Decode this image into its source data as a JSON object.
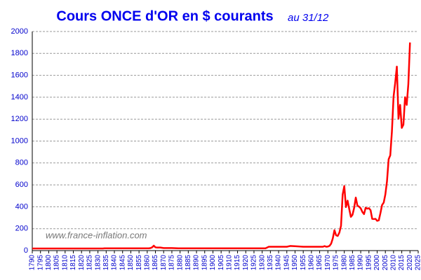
{
  "chart_data": {
    "type": "line",
    "title": "Cours ONCE d'OR en $ courants",
    "subtitle": "au 31/12",
    "annotation": "www.france-inflation.com",
    "color": "#ff0000",
    "x": [
      1790,
      1833,
      1834,
      1861,
      1862,
      1863,
      1864,
      1865,
      1866,
      1868,
      1870,
      1875,
      1879,
      1932,
      1934,
      1945,
      1947,
      1950,
      1955,
      1967,
      1968,
      1969,
      1970,
      1971,
      1972,
      1973,
      1974,
      1975,
      1976,
      1977,
      1978,
      1979,
      1980,
      1981,
      1982,
      1983,
      1984,
      1985,
      1986,
      1987,
      1988,
      1989,
      1990,
      1991,
      1992,
      1993,
      1994,
      1995,
      1996,
      1997,
      1998,
      1999,
      2000,
      2001,
      2002,
      2003,
      2004,
      2005,
      2006,
      2007,
      2008,
      2009,
      2010,
      2011,
      2012,
      2013,
      2014,
      2015,
      2016,
      2017,
      2018,
      2019,
      2020
    ],
    "values": [
      19.39,
      19.39,
      20.67,
      20.67,
      23,
      30,
      45,
      30,
      28,
      28,
      23,
      23,
      20.67,
      20.67,
      35,
      35,
      42,
      40,
      35,
      35,
      41,
      35,
      37,
      43,
      64,
      112,
      186,
      140,
      134,
      164,
      226,
      512,
      589,
      397,
      456,
      380,
      308,
      327,
      390,
      484,
      410,
      401,
      386,
      353,
      333,
      391,
      383,
      387,
      369,
      290,
      288,
      290,
      272,
      276,
      342,
      416,
      438,
      513,
      632,
      834,
      870,
      1087,
      1405,
      1531,
      1680,
      1204,
      1330,
      1120,
      1150,
      1400,
      1330,
      1520,
      1900
    ],
    "xlim": [
      1790,
      2025
    ],
    "xticks": [
      1790,
      1795,
      1800,
      1805,
      1810,
      1815,
      1820,
      1825,
      1830,
      1835,
      1840,
      1845,
      1850,
      1855,
      1860,
      1865,
      1870,
      1875,
      1880,
      1885,
      1890,
      1895,
      1900,
      1905,
      1910,
      1915,
      1920,
      1925,
      1930,
      1935,
      1940,
      1945,
      1950,
      1955,
      1960,
      1965,
      1970,
      1975,
      1980,
      1985,
      1990,
      1995,
      2000,
      2005,
      2010,
      2015,
      2020,
      2025
    ],
    "ylim": [
      0,
      2000
    ],
    "yticks": [
      0,
      200,
      400,
      600,
      800,
      1000,
      1200,
      1400,
      1600,
      1800,
      2000
    ],
    "grid": true
  }
}
